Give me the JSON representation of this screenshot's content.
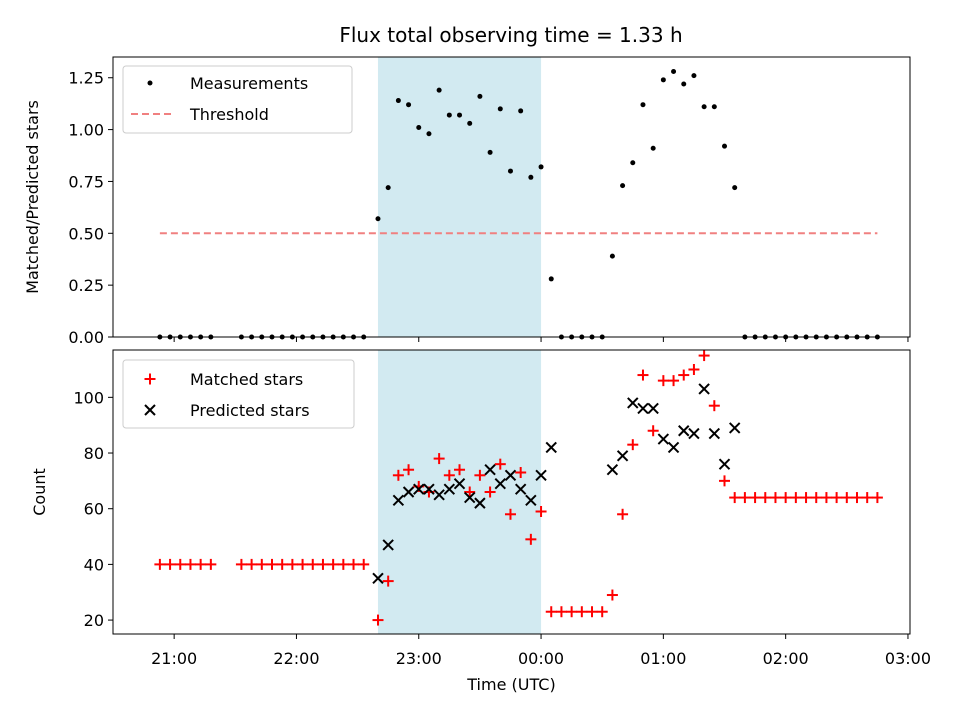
{
  "title": "Flux total observing time = 1.33 h",
  "colors": {
    "measurement": "#000000",
    "threshold": "#f08080",
    "matched": "#ff0000",
    "predicted": "#000000",
    "shade": "#add8e6"
  },
  "chart_data": [
    {
      "type": "scatter",
      "ylabel": "Matched/Predicted stars",
      "xlabel": "",
      "ylim": [
        0,
        1.35
      ],
      "yticks": [
        0,
        0.25,
        0.5,
        0.75,
        1.0,
        1.25
      ],
      "ytick_labels": [
        "0.00",
        "0.25",
        "0.50",
        "0.75",
        "1.00",
        "1.25"
      ],
      "shaded_interval": [
        "22:40",
        "00:00"
      ],
      "legend": {
        "placement": "upper-left",
        "entries": [
          "Measurements",
          "Threshold"
        ]
      },
      "series": [
        {
          "name": "Measurements",
          "marker": "dot",
          "points": [
            [
              "20:53",
              0
            ],
            [
              "20:58",
              0
            ],
            [
              "21:03",
              0
            ],
            [
              "21:08",
              0
            ],
            [
              "21:13",
              0
            ],
            [
              "21:18",
              0
            ],
            [
              "21:33",
              0
            ],
            [
              "21:38",
              0
            ],
            [
              "21:43",
              0
            ],
            [
              "21:48",
              0
            ],
            [
              "21:53",
              0
            ],
            [
              "21:58",
              0
            ],
            [
              "22:03",
              0
            ],
            [
              "22:08",
              0
            ],
            [
              "22:13",
              0
            ],
            [
              "22:18",
              0
            ],
            [
              "22:23",
              0
            ],
            [
              "22:28",
              0
            ],
            [
              "22:33",
              0
            ],
            [
              "22:40",
              0.57
            ],
            [
              "22:45",
              0.72
            ],
            [
              "22:50",
              1.14
            ],
            [
              "22:55",
              1.12
            ],
            [
              "23:00",
              1.01
            ],
            [
              "23:05",
              0.98
            ],
            [
              "23:10",
              1.19
            ],
            [
              "23:15",
              1.07
            ],
            [
              "23:20",
              1.07
            ],
            [
              "23:25",
              1.03
            ],
            [
              "23:30",
              1.16
            ],
            [
              "23:35",
              0.89
            ],
            [
              "23:40",
              1.1
            ],
            [
              "23:45",
              0.8
            ],
            [
              "23:50",
              1.09
            ],
            [
              "23:55",
              0.77
            ],
            [
              "00:00",
              0.82
            ],
            [
              "00:05",
              0.28
            ],
            [
              "00:10",
              0
            ],
            [
              "00:15",
              0
            ],
            [
              "00:20",
              0
            ],
            [
              "00:25",
              0
            ],
            [
              "00:30",
              0
            ],
            [
              "00:35",
              0.39
            ],
            [
              "00:40",
              0.73
            ],
            [
              "00:45",
              0.84
            ],
            [
              "00:50",
              1.12
            ],
            [
              "00:55",
              0.91
            ],
            [
              "01:00",
              1.24
            ],
            [
              "01:05",
              1.28
            ],
            [
              "01:10",
              1.22
            ],
            [
              "01:15",
              1.26
            ],
            [
              "01:20",
              1.11
            ],
            [
              "01:25",
              1.11
            ],
            [
              "01:30",
              0.92
            ],
            [
              "01:35",
              0.72
            ],
            [
              "01:40",
              0
            ],
            [
              "01:45",
              0
            ],
            [
              "01:50",
              0
            ],
            [
              "01:55",
              0
            ],
            [
              "02:00",
              0
            ],
            [
              "02:05",
              0
            ],
            [
              "02:10",
              0
            ],
            [
              "02:15",
              0
            ],
            [
              "02:20",
              0
            ],
            [
              "02:25",
              0
            ],
            [
              "02:30",
              0
            ],
            [
              "02:35",
              0
            ],
            [
              "02:40",
              0
            ],
            [
              "02:45",
              0
            ]
          ]
        },
        {
          "name": "Threshold",
          "marker": "dashed-line",
          "points": [
            [
              "20:53",
              0.5
            ],
            [
              "02:45",
              0.5
            ]
          ]
        }
      ]
    },
    {
      "type": "scatter",
      "ylabel": "Count",
      "xlabel": "Time (UTC)",
      "ylim": [
        15,
        117
      ],
      "yticks": [
        20,
        40,
        60,
        80,
        100
      ],
      "xticks": [
        "21:00",
        "22:00",
        "23:00",
        "00:00",
        "01:00",
        "02:00",
        "03:00"
      ],
      "shaded_interval": [
        "22:40",
        "00:00"
      ],
      "legend": {
        "placement": "upper-left",
        "entries": [
          "Matched stars",
          "Predicted stars"
        ]
      },
      "series": [
        {
          "name": "Matched stars",
          "marker": "plus",
          "points": [
            [
              "20:53",
              40
            ],
            [
              "20:58",
              40
            ],
            [
              "21:03",
              40
            ],
            [
              "21:08",
              40
            ],
            [
              "21:13",
              40
            ],
            [
              "21:18",
              40
            ],
            [
              "21:33",
              40
            ],
            [
              "21:38",
              40
            ],
            [
              "21:43",
              40
            ],
            [
              "21:48",
              40
            ],
            [
              "21:53",
              40
            ],
            [
              "21:58",
              40
            ],
            [
              "22:03",
              40
            ],
            [
              "22:08",
              40
            ],
            [
              "22:13",
              40
            ],
            [
              "22:18",
              40
            ],
            [
              "22:23",
              40
            ],
            [
              "22:28",
              40
            ],
            [
              "22:33",
              40
            ],
            [
              "22:40",
              20
            ],
            [
              "22:45",
              34
            ],
            [
              "22:50",
              72
            ],
            [
              "22:55",
              74
            ],
            [
              "23:00",
              68
            ],
            [
              "23:05",
              66
            ],
            [
              "23:10",
              78
            ],
            [
              "23:15",
              72
            ],
            [
              "23:20",
              74
            ],
            [
              "23:25",
              66
            ],
            [
              "23:30",
              72
            ],
            [
              "23:35",
              66
            ],
            [
              "23:40",
              76
            ],
            [
              "23:45",
              58
            ],
            [
              "23:50",
              73
            ],
            [
              "23:55",
              49
            ],
            [
              "00:00",
              59
            ],
            [
              "00:05",
              23
            ],
            [
              "00:10",
              23
            ],
            [
              "00:15",
              23
            ],
            [
              "00:20",
              23
            ],
            [
              "00:25",
              23
            ],
            [
              "00:30",
              23
            ],
            [
              "00:35",
              29
            ],
            [
              "00:40",
              58
            ],
            [
              "00:45",
              83
            ],
            [
              "00:50",
              108
            ],
            [
              "00:55",
              88
            ],
            [
              "01:00",
              106
            ],
            [
              "01:05",
              106
            ],
            [
              "01:10",
              108
            ],
            [
              "01:15",
              110
            ],
            [
              "01:20",
              115
            ],
            [
              "01:25",
              97
            ],
            [
              "01:30",
              70
            ],
            [
              "01:35",
              64
            ],
            [
              "01:40",
              64
            ],
            [
              "01:45",
              64
            ],
            [
              "01:50",
              64
            ],
            [
              "01:55",
              64
            ],
            [
              "02:00",
              64
            ],
            [
              "02:05",
              64
            ],
            [
              "02:10",
              64
            ],
            [
              "02:15",
              64
            ],
            [
              "02:20",
              64
            ],
            [
              "02:25",
              64
            ],
            [
              "02:30",
              64
            ],
            [
              "02:35",
              64
            ],
            [
              "02:40",
              64
            ],
            [
              "02:45",
              64
            ]
          ]
        },
        {
          "name": "Predicted stars",
          "marker": "x",
          "points": [
            [
              "22:40",
              35
            ],
            [
              "22:45",
              47
            ],
            [
              "22:50",
              63
            ],
            [
              "22:55",
              66
            ],
            [
              "23:00",
              67
            ],
            [
              "23:05",
              67
            ],
            [
              "23:10",
              65
            ],
            [
              "23:15",
              67
            ],
            [
              "23:20",
              69
            ],
            [
              "23:25",
              64
            ],
            [
              "23:30",
              62
            ],
            [
              "23:35",
              74
            ],
            [
              "23:40",
              69
            ],
            [
              "23:45",
              72
            ],
            [
              "23:50",
              67
            ],
            [
              "23:55",
              63
            ],
            [
              "00:00",
              72
            ],
            [
              "00:05",
              82
            ],
            [
              "00:35",
              74
            ],
            [
              "00:40",
              79
            ],
            [
              "00:45",
              98
            ],
            [
              "00:50",
              96
            ],
            [
              "00:55",
              96
            ],
            [
              "01:00",
              85
            ],
            [
              "01:05",
              82
            ],
            [
              "01:10",
              88
            ],
            [
              "01:15",
              87
            ],
            [
              "01:20",
              103
            ],
            [
              "01:25",
              87
            ],
            [
              "01:30",
              76
            ],
            [
              "01:35",
              89
            ]
          ]
        }
      ]
    }
  ]
}
